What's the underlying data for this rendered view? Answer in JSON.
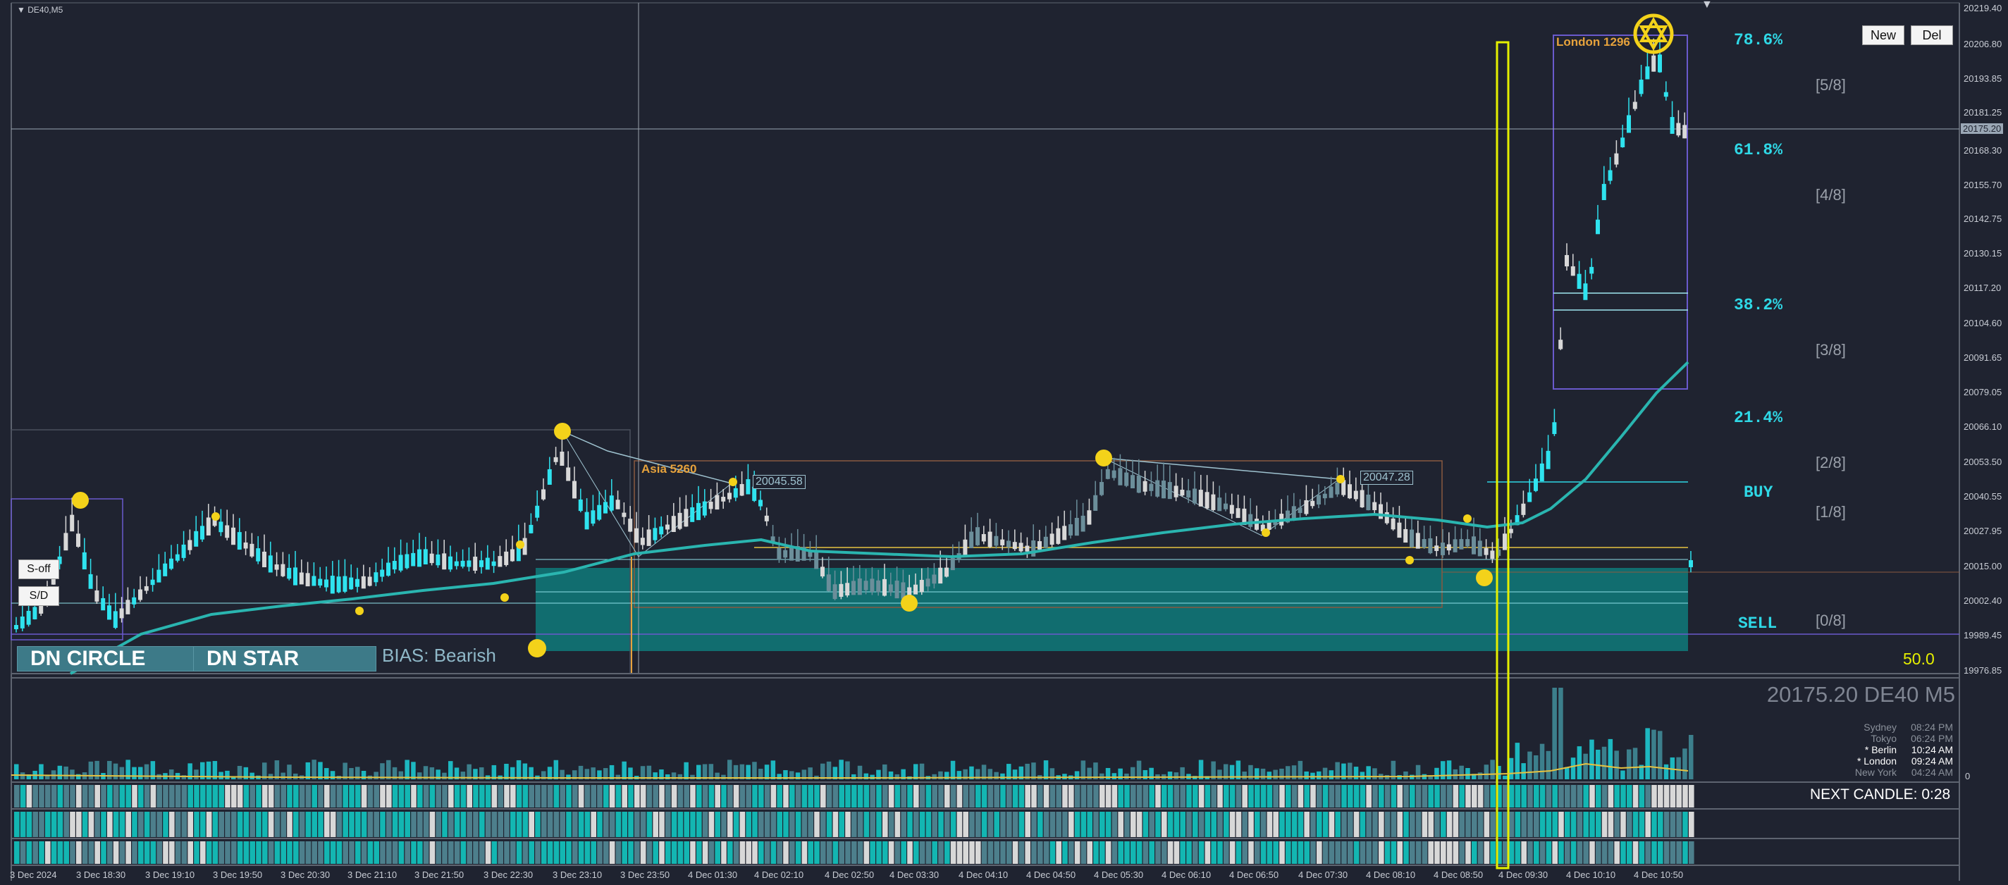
{
  "symbol_label": "DE40,M5",
  "buttons": {
    "new": "New",
    "del": "Del",
    "s_off": "S-off",
    "sd": "S/D"
  },
  "price_axis": [
    "20219.40",
    "20206.80",
    "20193.85",
    "20181.25",
    "20175.20",
    "20168.30",
    "20155.70",
    "20142.75",
    "20130.15",
    "20117.20",
    "20104.60",
    "20091.65",
    "20079.05",
    "20066.10",
    "20053.50",
    "20040.55",
    "20027.95",
    "20015.00",
    "20002.40",
    "19989.45",
    "19976.85"
  ],
  "current_price_tag": "20175.20",
  "fib_levels": [
    {
      "pct": "78.6%",
      "frac": "[5/8]"
    },
    {
      "pct": "61.8%",
      "frac": "[4/8]"
    },
    {
      "pct": "38.2%",
      "frac": "[3/8]"
    },
    {
      "pct": "21.4%",
      "frac": "[2/8]"
    },
    {
      "pct": "BUY",
      "frac": "[1/8]"
    },
    {
      "pct": "SELL",
      "frac": "[0/8]"
    }
  ],
  "sessions": {
    "asia": "Asia 5260",
    "london": "London 1296"
  },
  "price_labels": {
    "left_high": "20045.58",
    "right_high": "20047.28"
  },
  "patterns": {
    "first": "DN CIRCLE",
    "second": "DN STAR",
    "bias": "BIAS: Bearish"
  },
  "level_value": "50.0",
  "header_price": "20175.20 DE40 M5",
  "clocks": [
    {
      "city": "Sydney",
      "time": "08:24 PM"
    },
    {
      "city": "Tokyo",
      "time": "06:24 PM"
    },
    {
      "city": "* Berlin",
      "time": "10:24 AM"
    },
    {
      "city": "* London",
      "time": "09:24 AM"
    },
    {
      "city": "New York",
      "time": "04:24 AM"
    }
  ],
  "volume_axis_zero": "0",
  "next_candle": "NEXT CANDLE: 0:28",
  "time_axis": [
    "3 Dec 2024",
    "3 Dec 18:30",
    "3 Dec 19:10",
    "3 Dec 19:50",
    "3 Dec 20:30",
    "3 Dec 21:10",
    "3 Dec 21:50",
    "3 Dec 22:30",
    "3 Dec 23:10",
    "3 Dec 23:50",
    "4 Dec 01:30",
    "4 Dec 02:10",
    "4 Dec 02:50",
    "4 Dec 03:30",
    "4 Dec 04:10",
    "4 Dec 04:50",
    "4 Dec 05:30",
    "4 Dec 06:10",
    "4 Dec 06:50",
    "4 Dec 07:30",
    "4 Dec 08:10",
    "4 Dec 08:50",
    "4 Dec 09:30",
    "4 Dec 10:10",
    "4 Dec 10:50"
  ],
  "colors": {
    "background": "#1f2330",
    "bull": "#2fe3ef",
    "bear": "#d8d8d8",
    "ema": "#2ab5b0",
    "zone": "#0f7a7a",
    "highlight": "#e6f000",
    "session_box": "#6a5acd",
    "marker": "#f3d21a"
  }
}
